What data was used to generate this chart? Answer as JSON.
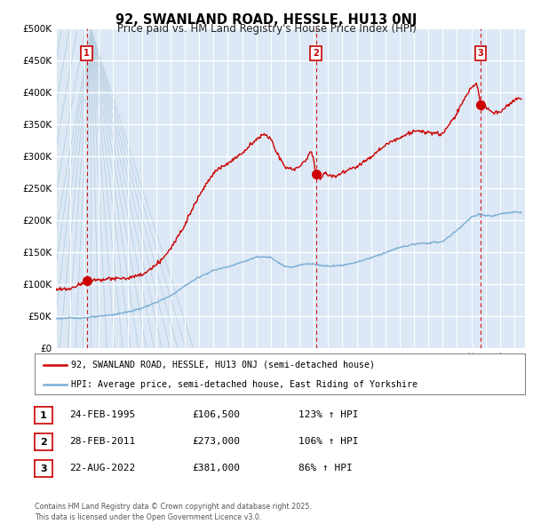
{
  "title": "92, SWANLAND ROAD, HESSLE, HU13 0NJ",
  "subtitle": "Price paid vs. HM Land Registry's House Price Index (HPI)",
  "ylim": [
    0,
    500000
  ],
  "yticks": [
    0,
    50000,
    100000,
    150000,
    200000,
    250000,
    300000,
    350000,
    400000,
    450000,
    500000
  ],
  "ytick_labels": [
    "£0",
    "£50K",
    "£100K",
    "£150K",
    "£200K",
    "£250K",
    "£300K",
    "£350K",
    "£400K",
    "£450K",
    "£500K"
  ],
  "xlim_start": 1993.0,
  "xlim_end": 2025.75,
  "sales": [
    {
      "year": 1995.15,
      "price": 106500,
      "label": "1"
    },
    {
      "year": 2011.15,
      "price": 273000,
      "label": "2"
    },
    {
      "year": 2022.64,
      "price": 381000,
      "label": "3"
    }
  ],
  "sale_color": "#cc0000",
  "hpi_color": "#7aadd4",
  "bg_color": "#dce8f5",
  "hatch_color": "#b8cfe0",
  "grid_color": "#ffffff",
  "legend_line1": "92, SWANLAND ROAD, HESSLE, HU13 0NJ (semi-detached house)",
  "legend_line2": "HPI: Average price, semi-detached house, East Riding of Yorkshire",
  "table_rows": [
    {
      "num": "1",
      "date": "24-FEB-1995",
      "price": "£106,500",
      "hpi": "123% ↑ HPI"
    },
    {
      "num": "2",
      "date": "28-FEB-2011",
      "price": "£273,000",
      "hpi": "106% ↑ HPI"
    },
    {
      "num": "3",
      "date": "22-AUG-2022",
      "price": "£381,000",
      "hpi": "86% ↑ HPI"
    }
  ],
  "footer": "Contains HM Land Registry data © Crown copyright and database right 2025.\nThis data is licensed under the Open Government Licence v3.0.",
  "hpi_anchors": [
    [
      1993.0,
      47000
    ],
    [
      1994.0,
      47500
    ],
    [
      1995.0,
      48000
    ],
    [
      1996.0,
      50000
    ],
    [
      1997.0,
      53000
    ],
    [
      1998.0,
      57000
    ],
    [
      1999.0,
      63000
    ],
    [
      2000.0,
      72000
    ],
    [
      2001.0,
      82000
    ],
    [
      2002.0,
      98000
    ],
    [
      2003.0,
      112000
    ],
    [
      2004.0,
      122000
    ],
    [
      2005.0,
      128000
    ],
    [
      2006.0,
      135000
    ],
    [
      2007.0,
      143000
    ],
    [
      2008.0,
      143000
    ],
    [
      2008.5,
      135000
    ],
    [
      2009.0,
      128000
    ],
    [
      2009.5,
      127000
    ],
    [
      2010.0,
      130000
    ],
    [
      2010.5,
      133000
    ],
    [
      2011.0,
      132000
    ],
    [
      2011.5,
      130000
    ],
    [
      2012.0,
      129000
    ],
    [
      2013.0,
      130000
    ],
    [
      2014.0,
      135000
    ],
    [
      2015.0,
      142000
    ],
    [
      2016.0,
      150000
    ],
    [
      2017.0,
      158000
    ],
    [
      2018.0,
      163000
    ],
    [
      2019.0,
      165000
    ],
    [
      2020.0,
      167000
    ],
    [
      2021.0,
      185000
    ],
    [
      2022.0,
      205000
    ],
    [
      2022.5,
      210000
    ],
    [
      2023.0,
      208000
    ],
    [
      2023.5,
      207000
    ],
    [
      2024.0,
      210000
    ],
    [
      2024.5,
      212000
    ],
    [
      2025.0,
      213000
    ],
    [
      2025.5,
      213000
    ]
  ],
  "prop_anchors": [
    [
      1993.0,
      92000
    ],
    [
      1994.0,
      93000
    ],
    [
      1995.15,
      106500
    ],
    [
      1995.5,
      107000
    ],
    [
      1996.0,
      107500
    ],
    [
      1997.0,
      109000
    ],
    [
      1998.0,
      110000
    ],
    [
      1999.0,
      115000
    ],
    [
      2000.0,
      130000
    ],
    [
      2001.0,
      155000
    ],
    [
      2002.0,
      195000
    ],
    [
      2003.0,
      240000
    ],
    [
      2004.0,
      275000
    ],
    [
      2005.0,
      290000
    ],
    [
      2006.0,
      305000
    ],
    [
      2007.0,
      328000
    ],
    [
      2007.5,
      335000
    ],
    [
      2008.0,
      328000
    ],
    [
      2008.5,
      303000
    ],
    [
      2009.0,
      283000
    ],
    [
      2009.5,
      280000
    ],
    [
      2010.0,
      285000
    ],
    [
      2010.5,
      295000
    ],
    [
      2010.8,
      310000
    ],
    [
      2011.0,
      295000
    ],
    [
      2011.15,
      273000
    ],
    [
      2011.5,
      268000
    ],
    [
      2011.8,
      275000
    ],
    [
      2012.0,
      271000
    ],
    [
      2012.5,
      270000
    ],
    [
      2013.0,
      275000
    ],
    [
      2014.0,
      285000
    ],
    [
      2015.0,
      300000
    ],
    [
      2016.0,
      318000
    ],
    [
      2017.0,
      330000
    ],
    [
      2018.0,
      340000
    ],
    [
      2019.0,
      338000
    ],
    [
      2020.0,
      335000
    ],
    [
      2021.0,
      368000
    ],
    [
      2021.5,
      390000
    ],
    [
      2022.0,
      408000
    ],
    [
      2022.4,
      415000
    ],
    [
      2022.64,
      381000
    ],
    [
      2022.8,
      375000
    ],
    [
      2023.0,
      378000
    ],
    [
      2023.3,
      372000
    ],
    [
      2023.6,
      368000
    ],
    [
      2024.0,
      370000
    ],
    [
      2024.5,
      380000
    ],
    [
      2025.0,
      388000
    ],
    [
      2025.5,
      392000
    ]
  ]
}
